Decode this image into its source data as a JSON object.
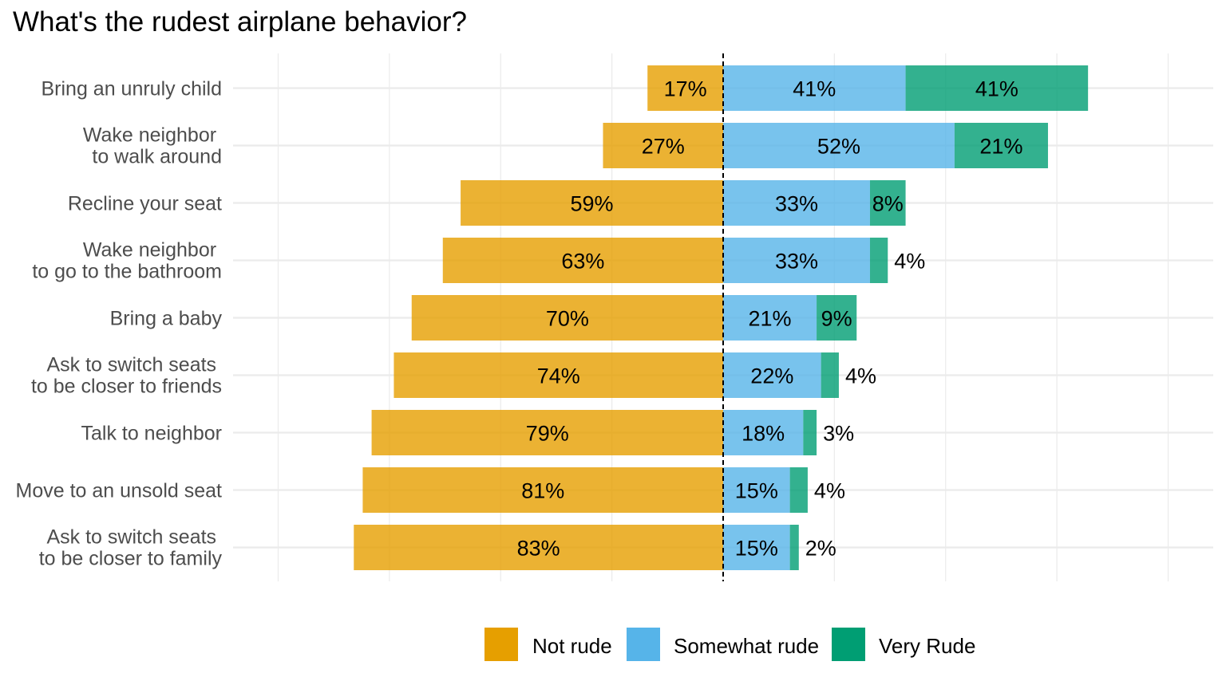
{
  "chart_data": {
    "type": "bar",
    "title": "What's the rudest airplane behavior?",
    "orientation": "horizontal",
    "stacked": "diverging",
    "categories": [
      "Bring an unruly child",
      "Wake neighbor \nto walk around",
      "Recline your seat",
      "Wake neighbor \nto go to the bathroom",
      "Bring a baby",
      "Ask to switch seats \nto be closer to friends",
      "Talk to neighbor",
      "Move to an unsold seat",
      "Ask to switch seats \nto be closer to family"
    ],
    "series": [
      {
        "name": "Not rude",
        "direction": "left",
        "color": "#E69F00",
        "values": [
          17,
          27,
          59,
          63,
          70,
          74,
          79,
          81,
          83
        ],
        "labels": [
          "17%",
          "27%",
          "59%",
          "63%",
          "70%",
          "74%",
          "79%",
          "81%",
          "83%"
        ]
      },
      {
        "name": "Somewhat rude",
        "direction": "right",
        "color": "#56B4E9",
        "values": [
          41,
          52,
          33,
          33,
          21,
          22,
          18,
          15,
          15
        ],
        "labels": [
          "41%",
          "52%",
          "33%",
          "33%",
          "21%",
          "22%",
          "18%",
          "15%",
          "15%"
        ]
      },
      {
        "name": "Very Rude",
        "direction": "right",
        "color": "#009E73",
        "values": [
          41,
          21,
          8,
          4,
          9,
          4,
          3,
          4,
          2
        ],
        "labels": [
          "41%",
          "21%",
          "8%",
          "4%",
          "9%",
          "4%",
          "3%",
          "4%",
          "2%"
        ]
      }
    ],
    "grid": true,
    "legend_position": "bottom",
    "center_line": "dashed"
  }
}
